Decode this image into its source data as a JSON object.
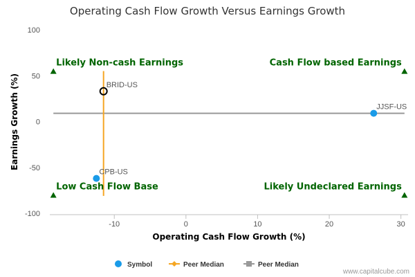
{
  "chart_data": {
    "type": "scatter",
    "title": "Operating Cash Flow Growth Versus Earnings Growth",
    "xlabel": "Operating Cash Flow Growth (%)",
    "ylabel": "Earnings Growth (%)",
    "xlim": [
      -19,
      31
    ],
    "ylim": [
      -100,
      100
    ],
    "x_ticks": [
      -10,
      0,
      10,
      20,
      30
    ],
    "y_ticks": [
      100,
      50,
      0,
      -50,
      -100
    ],
    "grid": false,
    "legend_placement": "bottom-center",
    "points": [
      {
        "label": "CPB-US",
        "x": -12.5,
        "y": -62,
        "style": "filled",
        "color": "#1a9be8"
      },
      {
        "label": "BRID-US",
        "x": -11.5,
        "y": 33,
        "style": "open",
        "color": "#000000"
      },
      {
        "label": "JJSF-US",
        "x": 26.2,
        "y": 9,
        "style": "filled",
        "color": "#1a9be8"
      }
    ],
    "peer_median_x": {
      "value": -11.5,
      "y_range": [
        -81,
        55
      ],
      "color": "#f5a623"
    },
    "peer_median_y": {
      "value": 9,
      "x_range": [
        -18.5,
        30.5
      ],
      "color": "#999999"
    },
    "quadrant_labels": [
      {
        "text": "Likely Non-cash Earnings",
        "corner": "top-left",
        "x": -18.5,
        "y": 55
      },
      {
        "text": "Cash Flow based Earnings",
        "corner": "top-right",
        "x": 30.5,
        "y": 55
      },
      {
        "text": "Low Cash Flow Base",
        "corner": "bottom-left",
        "x": -18.5,
        "y": -80
      },
      {
        "text": "Likely Undeclared Earnings",
        "corner": "bottom-right",
        "x": 30.5,
        "y": -80
      }
    ],
    "quadrant_marker_color": "#006400",
    "legend": [
      {
        "label": "Symbol",
        "symbol": "circle",
        "color": "#1a9be8"
      },
      {
        "label": "Peer Median",
        "symbol": "diamond-line",
        "color": "#f5a623"
      },
      {
        "label": "Peer Median",
        "symbol": "square-line",
        "color": "#999999"
      }
    ]
  },
  "credit": "www.capitalcube.com"
}
